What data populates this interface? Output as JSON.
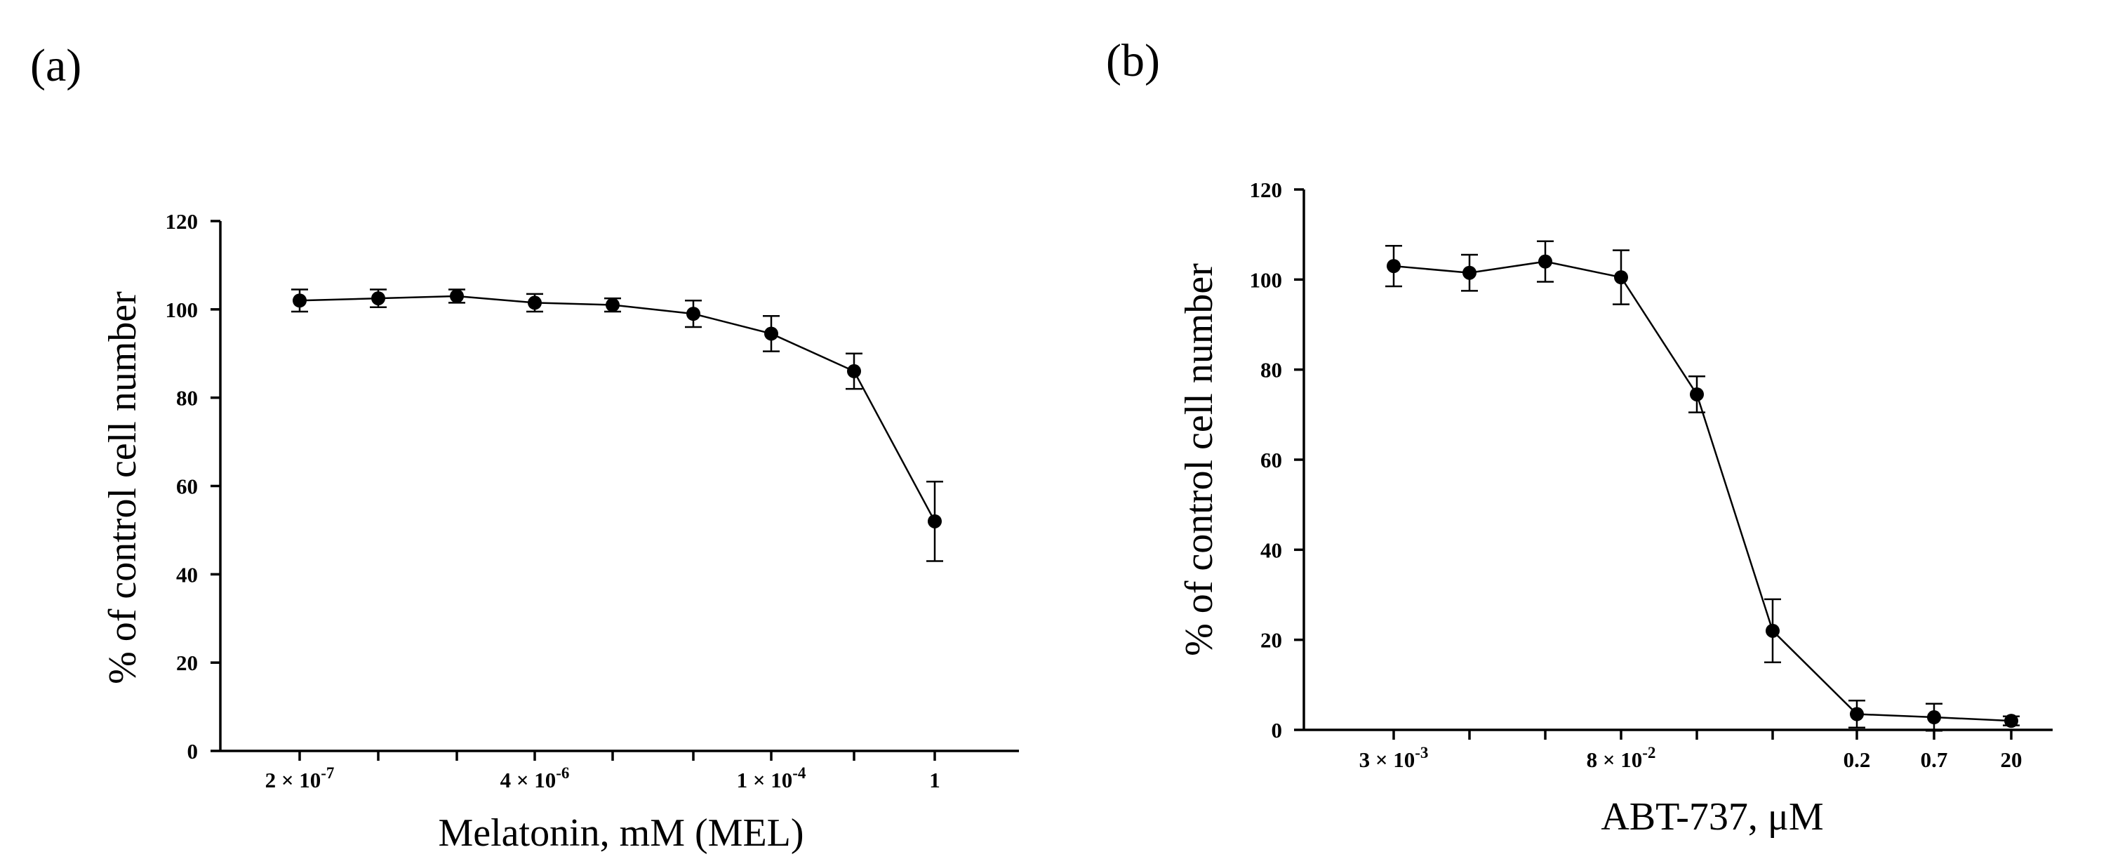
{
  "chart_data": [
    {
      "panel_label": "(a)",
      "type": "line",
      "xlabel": "Melatonin, mM (MEL)",
      "ylabel": "% of control cell number",
      "ylim": [
        0,
        120
      ],
      "y_ticks": [
        "0",
        "20",
        "40",
        "60",
        "80",
        "100",
        "120"
      ],
      "x_tick_labels": [
        {
          "label": "2 × 10",
          "exp": "-7",
          "index": 0
        },
        {
          "label": "4 × 10",
          "exp": "-6",
          "index": 3
        },
        {
          "label": "1 × 10",
          "exp": "-4",
          "index": 6
        },
        {
          "label": "1",
          "exp": "",
          "index": 8
        }
      ],
      "series": [
        {
          "name": "MEL",
          "values": [
            102,
            102.5,
            103,
            101.5,
            101,
            99,
            94.5,
            86,
            52
          ],
          "errors": [
            2.5,
            2,
            1.5,
            2,
            1.5,
            3,
            4,
            4,
            9
          ]
        }
      ]
    },
    {
      "panel_label": "(b)",
      "type": "line",
      "xlabel": "ABT-737, μM",
      "ylabel": "% of control cell number",
      "ylim": [
        0,
        120
      ],
      "y_ticks": [
        "0",
        "20",
        "40",
        "60",
        "80",
        "100",
        "120"
      ],
      "x_tick_labels": [
        {
          "label": "3 × 10",
          "exp": "-3",
          "index": 0
        },
        {
          "label": "8 × 10",
          "exp": "-2",
          "index": 3
        },
        {
          "label": "0.2",
          "exp": "",
          "index": 6
        },
        {
          "label": "0.7",
          "exp": "",
          "index": 7
        },
        {
          "label": "20",
          "exp": "",
          "index": 8
        }
      ],
      "series": [
        {
          "name": "ABT-737",
          "values": [
            103,
            101.5,
            104,
            100.5,
            74.5,
            22,
            3.5,
            2.8,
            2
          ],
          "errors": [
            4.5,
            4,
            4.5,
            6,
            4,
            7,
            3,
            3,
            1
          ]
        }
      ]
    }
  ]
}
